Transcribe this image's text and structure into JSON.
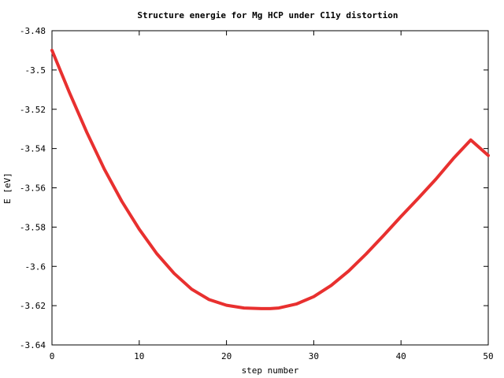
{
  "chart_data": {
    "type": "line",
    "title": "Structure energie for Mg HCP under C11y distortion",
    "xlabel": "step number",
    "ylabel": "E [eV]",
    "xlim": [
      0,
      50
    ],
    "ylim": [
      -3.64,
      -3.48
    ],
    "x_ticks": [
      0,
      10,
      20,
      30,
      40,
      50
    ],
    "x_tick_labels": [
      "0",
      "10",
      "20",
      "30",
      "40",
      "50"
    ],
    "y_ticks": [
      -3.48,
      -3.5,
      -3.52,
      -3.54,
      -3.56,
      -3.58,
      -3.6,
      -3.62,
      -3.64
    ],
    "y_tick_labels": [
      "-3.48",
      "-3.5",
      "-3.52",
      "-3.54",
      "-3.56",
      "-3.58",
      "-3.6",
      "-3.62",
      "-3.64"
    ],
    "grid": false,
    "legend": "none",
    "series": [
      {
        "color": "#e8302f",
        "x": [
          0,
          2,
          4,
          6,
          8,
          10,
          12,
          14,
          16,
          18,
          20,
          22,
          24,
          25,
          26,
          28,
          30,
          32,
          34,
          36,
          38,
          40,
          42,
          44,
          46,
          48,
          50
        ],
        "y": [
          -3.49,
          -3.5115,
          -3.5318,
          -3.5505,
          -3.5668,
          -3.5811,
          -3.5935,
          -3.6036,
          -3.6116,
          -3.6169,
          -3.6198,
          -3.6212,
          -3.6215,
          -3.6215,
          -3.6212,
          -3.6192,
          -3.6154,
          -3.6097,
          -3.6024,
          -3.5937,
          -3.5843,
          -3.5746,
          -3.5652,
          -3.5556,
          -3.5451,
          -3.5356,
          -3.5435
        ]
      }
    ]
  }
}
